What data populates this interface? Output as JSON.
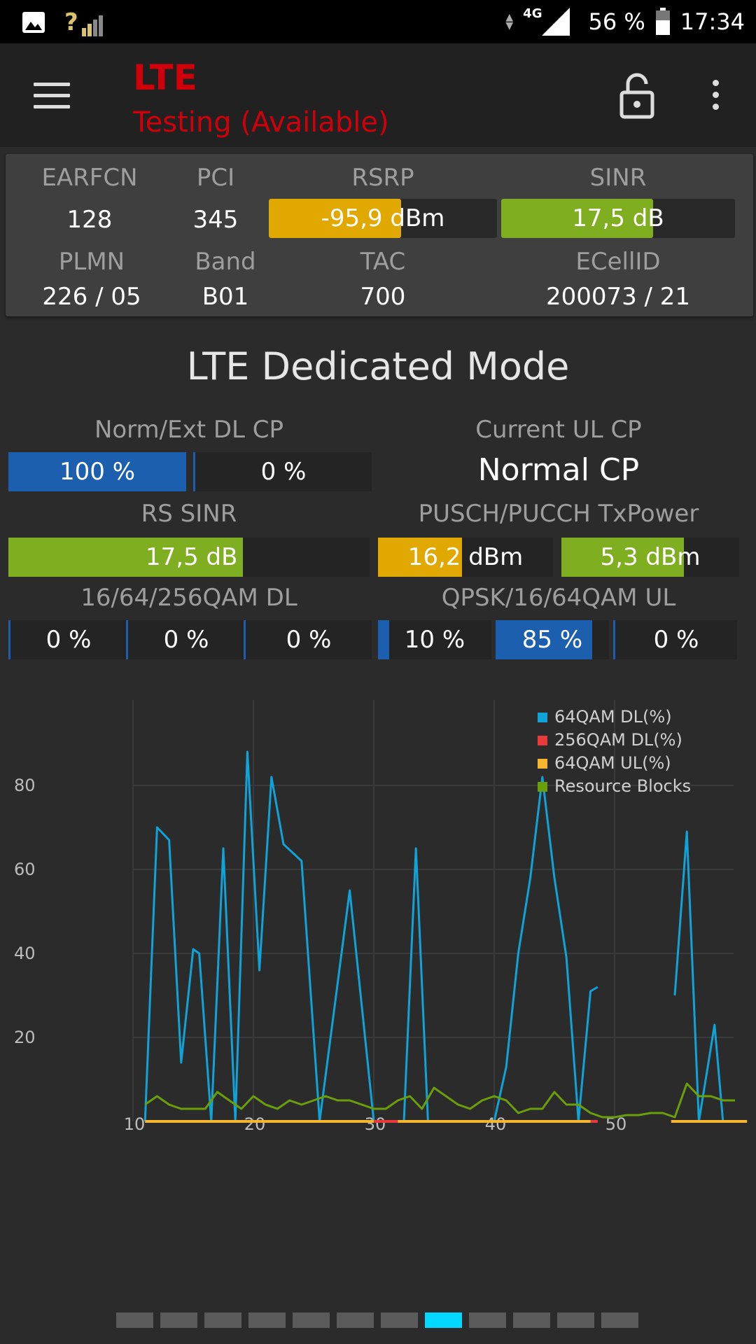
{
  "status_bar": {
    "signal_text": "?",
    "network": "4G",
    "battery": "56 %",
    "time": "17:34"
  },
  "app_bar": {
    "title": "LTE",
    "subtitle": "Testing (Available)",
    "title_color": "#d0000a"
  },
  "info": {
    "earfcn_label": "EARFCN",
    "earfcn": "128",
    "pci_label": "PCI",
    "pci": "345",
    "rsrp_label": "RSRP",
    "rsrp": "-95,9 dBm",
    "rsrp_fill": 0.58,
    "rsrp_color": "#e0a800",
    "sinr_label": "SINR",
    "sinr": "17,5 dB",
    "sinr_fill": 0.65,
    "sinr_color": "#7fae20",
    "plmn_label": "PLMN",
    "plmn": "226 / 05",
    "band_label": "Band",
    "band": "B01",
    "tac_label": "TAC",
    "tac": "700",
    "ecellid_label": "ECellID",
    "ecellid": "200073 / 21"
  },
  "section": {
    "title": "LTE Dedicated Mode",
    "dl_cp_label": "Norm/Ext DL CP",
    "dl_cp_norm": "100 %",
    "dl_cp_norm_fill": 1.0,
    "dl_cp_ext": "0 %",
    "dl_cp_ext_fill": 0.0,
    "ul_cp_label": "Current UL CP",
    "ul_cp": "Normal CP",
    "rs_sinr_label": "RS SINR",
    "rs_sinr": "17,5 dB",
    "rs_sinr_fill": 0.65,
    "txpower_label": "PUSCH/PUCCH TxPower",
    "pusch": "16,2 dBm",
    "pusch_fill": 0.48,
    "pucch": "5,3 dBm",
    "pucch_fill": 0.69,
    "qam_dl_label": "16/64/256QAM DL",
    "qam_dl": [
      "0 %",
      "0 %",
      "0 %"
    ],
    "qam_ul_label": "QPSK/16/64QAM UL",
    "qam_ul": [
      "10 %",
      "85 %",
      "0 %"
    ],
    "qam_ul_fill": [
      0.1,
      0.85,
      0.0
    ],
    "blue": "#1c5fae",
    "green": "#7fae20",
    "orange": "#e0a800"
  },
  "chart_data": {
    "type": "line",
    "xlim": [
      10,
      60
    ],
    "ylim": [
      0,
      100
    ],
    "x_ticks": [
      "10",
      "20",
      "30",
      "40",
      "50"
    ],
    "y_ticks": [
      "20",
      "40",
      "60",
      "80"
    ],
    "legend_position": "top-right",
    "series": [
      {
        "name": "64QAM DL(%)",
        "color": "#0fa3d8",
        "segments": [
          [
            [
              11,
              0
            ],
            [
              12,
              70
            ],
            [
              13,
              67
            ],
            [
              14,
              14
            ],
            [
              15,
              41
            ],
            [
              15.5,
              40
            ],
            [
              16.5,
              0
            ],
            [
              17.5,
              65
            ],
            [
              18.5,
              0
            ],
            [
              19.5,
              88
            ],
            [
              20.5,
              36
            ],
            [
              21.5,
              82
            ],
            [
              22.5,
              66
            ],
            [
              24,
              62
            ],
            [
              25.5,
              0
            ],
            [
              28,
              55
            ],
            [
              30,
              0
            ],
            [
              32.5,
              0
            ],
            [
              33.5,
              65
            ],
            [
              34.5,
              0
            ],
            [
              40,
              0
            ],
            [
              41,
              13
            ],
            [
              42,
              40
            ],
            [
              43,
              58
            ],
            [
              44,
              82
            ],
            [
              45,
              58
            ],
            [
              46,
              39
            ],
            [
              47,
              0
            ],
            [
              48,
              31
            ],
            [
              48.6,
              32
            ]
          ],
          [
            [
              55,
              30
            ],
            [
              56,
              69
            ],
            [
              57,
              0
            ],
            [
              58.3,
              23
            ],
            [
              59,
              0
            ]
          ]
        ]
      },
      {
        "name": "256QAM DL(%)",
        "color": "#e83a3a",
        "segments": [
          [
            [
              11,
              0
            ],
            [
              11.6,
              0
            ]
          ],
          [
            [
              30,
              0
            ],
            [
              32,
              0
            ]
          ],
          [
            [
              47.8,
              0
            ],
            [
              48.6,
              0
            ]
          ]
        ]
      },
      {
        "name": "64QAM UL(%)",
        "color": "#f5b52e",
        "segments": [
          [
            [
              11,
              0
            ],
            [
              30,
              0
            ]
          ],
          [
            [
              32,
              0
            ],
            [
              48,
              0
            ]
          ],
          [
            [
              54.7,
              0
            ],
            [
              61,
              0
            ]
          ]
        ]
      },
      {
        "name": "Resource Blocks",
        "color": "#6a9e0a",
        "segments": [
          [
            [
              11,
              4
            ],
            [
              12,
              6
            ],
            [
              13,
              4
            ],
            [
              14,
              3
            ],
            [
              15,
              3
            ],
            [
              16,
              3
            ],
            [
              17,
              7
            ],
            [
              18,
              5
            ],
            [
              19,
              3
            ],
            [
              20,
              6
            ],
            [
              21,
              4
            ],
            [
              22,
              3
            ],
            [
              23,
              5
            ],
            [
              24,
              4
            ],
            [
              25,
              5
            ],
            [
              26,
              6
            ],
            [
              27,
              5
            ],
            [
              28,
              5
            ],
            [
              29,
              4
            ],
            [
              30,
              3
            ],
            [
              31,
              3
            ],
            [
              32,
              5
            ],
            [
              33,
              6
            ],
            [
              34,
              3
            ],
            [
              35,
              8
            ],
            [
              36,
              6
            ],
            [
              37,
              4
            ],
            [
              38,
              3
            ],
            [
              39,
              5
            ],
            [
              40,
              6
            ],
            [
              41,
              5
            ],
            [
              42,
              2
            ],
            [
              43,
              3
            ],
            [
              44,
              3
            ],
            [
              45,
              7
            ],
            [
              46,
              4
            ],
            [
              47,
              4
            ],
            [
              48,
              2
            ],
            [
              49,
              1
            ],
            [
              50,
              1
            ],
            [
              51,
              1.5
            ],
            [
              52,
              1.5
            ],
            [
              53,
              2
            ],
            [
              54,
              2
            ],
            [
              55,
              1
            ],
            [
              56,
              9
            ],
            [
              57,
              6
            ],
            [
              58,
              6
            ],
            [
              59,
              5
            ],
            [
              60,
              5
            ]
          ]
        ]
      }
    ]
  },
  "pager": {
    "count": 12,
    "active": 7
  }
}
